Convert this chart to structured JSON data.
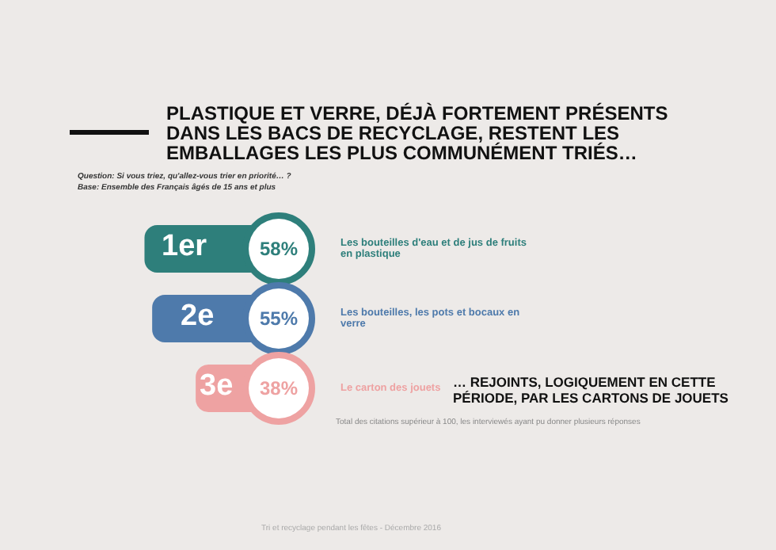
{
  "chart_data": {
    "type": "bar",
    "orientation": "horizontal",
    "title": "PLASTIQUE ET VERRE, DÉJÀ FORTEMENT PRÉSENTS DANS LES BACS DE RECYCLAGE, RESTENT LES EMBALLAGES LES PLUS COMMUNÉMENT TRIÉS…",
    "subtitle": "Question: Si vous triez, qu'allez-vous trier en priorité… ?\nBase: Ensemble des Français âgés de 15 ans et plus",
    "categories": [
      "Les bouteilles d'eau et de jus de fruits en plastique",
      "Les bouteilles, les pots et bocaux en verre",
      "Le carton des jouets"
    ],
    "values": [
      58,
      55,
      38
    ],
    "colors": [
      "#2e7f7b",
      "#4e7aab",
      "#eea2a2"
    ],
    "value_labels": [
      "58%",
      "55%",
      "38%"
    ],
    "annotations": [
      {
        "text": "1er",
        "y": "Les bouteilles d'eau et de jus de fruits en plastique"
      },
      {
        "text": "2e",
        "y": "Les bouteilles, les pots et bocaux en verre"
      },
      {
        "text": "3e",
        "y": "Le carton des jouets"
      },
      "… REJOINTS, LOGIQUEMENT EN CETTE PÉRIODE, PAR LES CARTONS DE JOUETS",
      "Total des citations supérieur à 100, les interviewés ayant pu donner plusieurs réponses",
      "Tri et recyclage pendant les fêtes - Décembre 2016"
    ]
  }
}
